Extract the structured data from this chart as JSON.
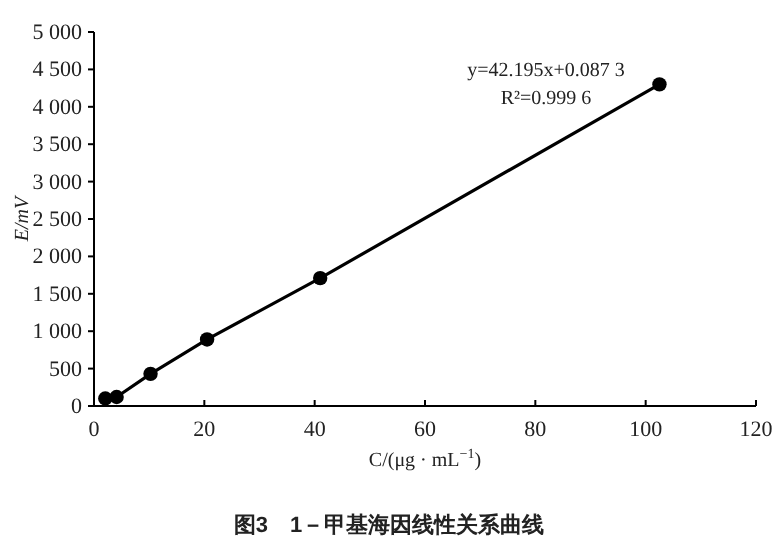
{
  "chart_data": {
    "type": "line",
    "title": "图3　1－甲基海因线性关系曲线",
    "xlabel": "C/(μg · mL$^{−1}$)",
    "ylabel": "E/mV",
    "annotations": [
      "y=42.195x+0.087 3",
      "R²=0.999 6"
    ],
    "series": [
      {
        "color": "#000000",
        "x": [
          2.05,
          4.1,
          10.25,
          20.5,
          41,
          102.5
        ],
        "values": [
          100,
          120,
          430,
          890,
          1710,
          4300
        ]
      }
    ],
    "marker": "circle",
    "line_style": "solid",
    "grid": false,
    "xlim": [
      0,
      120
    ],
    "xticks": [
      0,
      20,
      40,
      60,
      80,
      100,
      120
    ],
    "ylim": [
      0,
      5000
    ],
    "yticks": [
      0,
      500,
      {
        "value": 1000,
        "label": "1 000"
      },
      {
        "value": 1500,
        "label": "1 500"
      },
      {
        "value": 2000,
        "label": "2 000"
      },
      {
        "value": 2500,
        "label": "2 500"
      },
      {
        "value": 3000,
        "label": "3 000"
      },
      {
        "value": 3500,
        "label": "3 500"
      },
      {
        "value": 4000,
        "label": "4 000"
      },
      {
        "value": 4500,
        "label": "4 500"
      },
      {
        "value": 5000,
        "label": "5 000"
      }
    ]
  }
}
